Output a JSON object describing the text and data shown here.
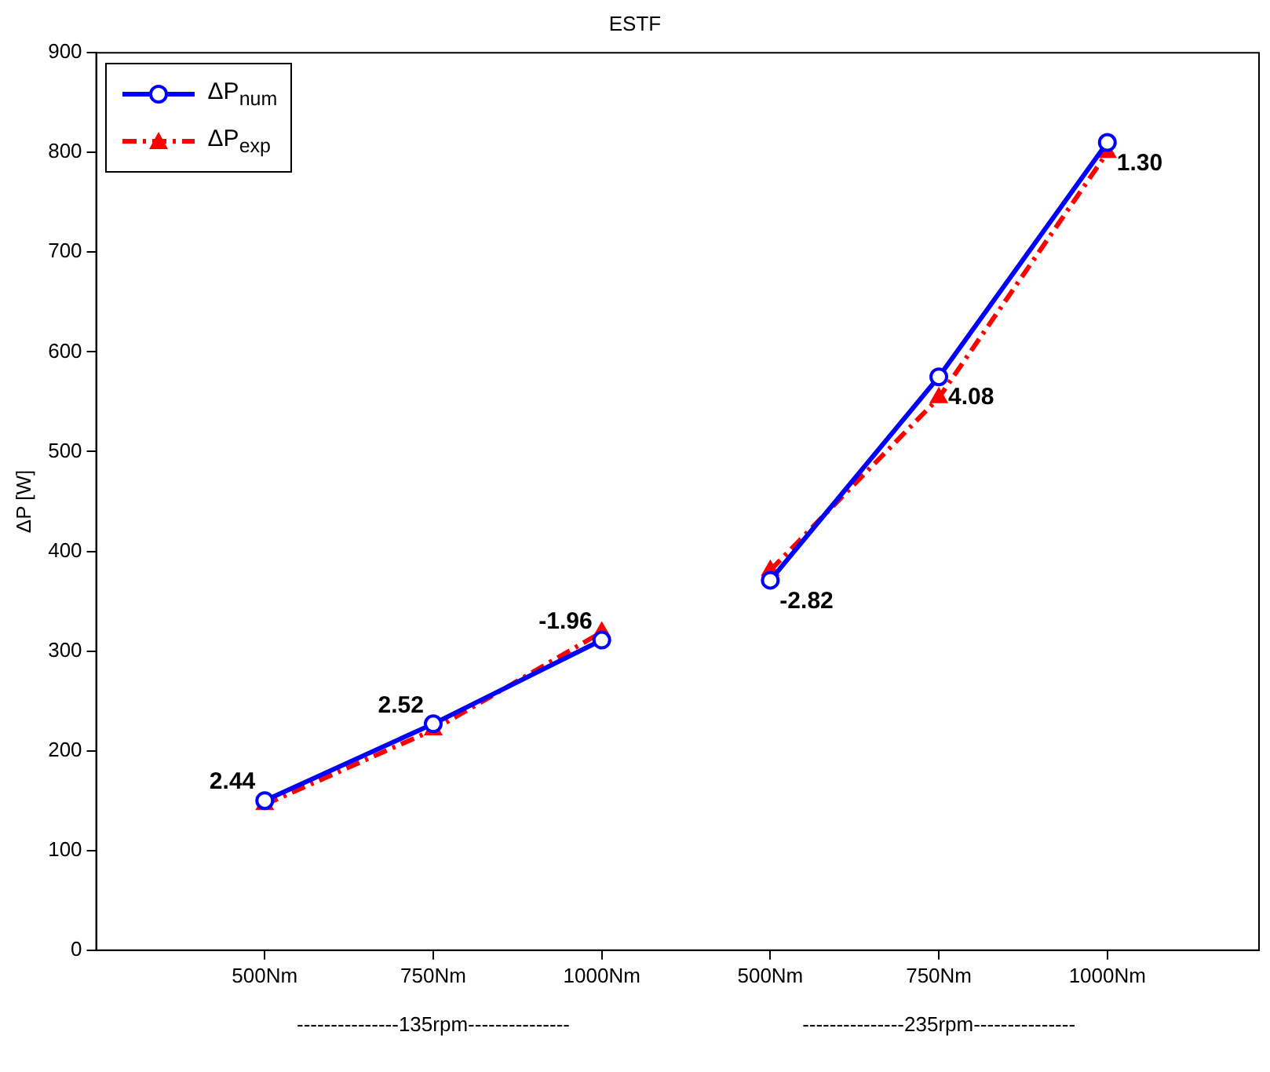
{
  "chart_data": {
    "type": "line",
    "title": "ESTF",
    "ylabel": "ΔP [W]",
    "categories": [
      "500Nm",
      "750Nm",
      "1000Nm",
      "500Nm",
      "750Nm",
      "1000Nm"
    ],
    "ylim": [
      0,
      900
    ],
    "yticks": [
      0,
      100,
      200,
      300,
      400,
      500,
      600,
      700,
      800,
      900
    ],
    "series": [
      {
        "name": "ΔP$_{num}$",
        "color": "#0000ff",
        "marker": "circle",
        "line_style": "solid",
        "values": [
          150,
          227,
          311,
          null,
          null,
          null
        ]
      },
      {
        "name": "ΔP$_{exp}$",
        "color": "#ff0000",
        "marker": "triangle",
        "line_style": "dashed",
        "values": [
          146,
          221,
          319,
          null,
          null,
          null
        ]
      },
      {
        "color": "#0000ff",
        "marker": "circle",
        "line_style": "solid",
        "values": [
          null,
          null,
          null,
          371,
          575,
          810
        ]
      },
      {
        "color": "#ff0000",
        "marker": "triangle",
        "line_style": "dashed",
        "values": [
          null,
          null,
          null,
          381,
          554,
          800
        ]
      }
    ],
    "annotations": [
      {
        "text": "2.44",
        "x": "500Nm",
        "y": 150
      },
      {
        "text": "2.52",
        "x": "750Nm",
        "y": 227
      },
      {
        "text": "-1.96",
        "x": "1000Nm",
        "y": 311
      },
      "-2.82",
      "4.08",
      "1.30",
      "---------------135rpm---------------",
      "---------------235rpm---------------"
    ],
    "legend": "top left",
    "grid": false
  }
}
